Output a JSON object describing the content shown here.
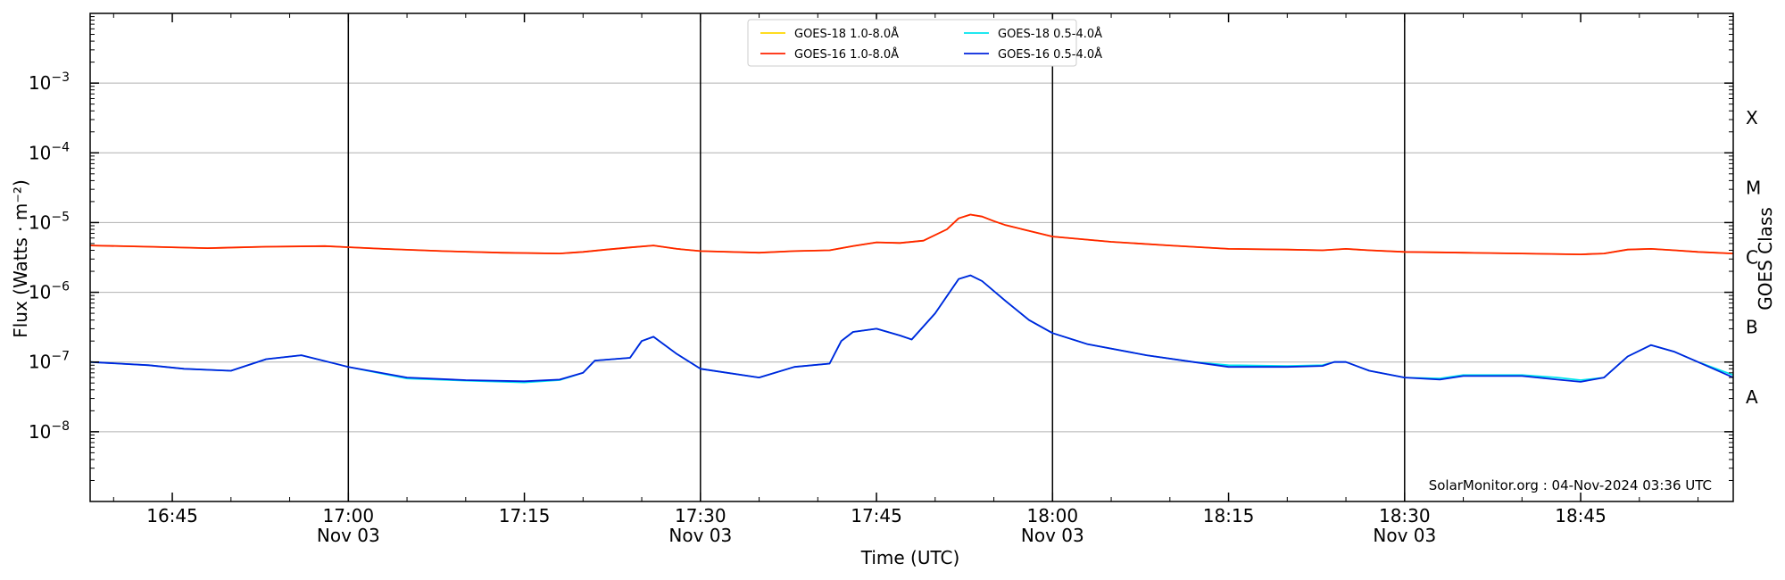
{
  "chart_data": {
    "type": "line",
    "title": "",
    "xlabel": "Time (UTC)",
    "ylabel": "Flux (Watts · m⁻²)",
    "ylabel_right": "GOES Class",
    "y_scale": "log",
    "ylim": [
      1e-09,
      0.01
    ],
    "xlim": [
      "16:38",
      "18:58"
    ],
    "y_ticks": [
      {
        "value": 1e-08,
        "base": "10",
        "exp": "−8"
      },
      {
        "value": 1e-07,
        "base": "10",
        "exp": "−7"
      },
      {
        "value": 1e-06,
        "base": "10",
        "exp": "−6"
      },
      {
        "value": 1e-05,
        "base": "10",
        "exp": "−5"
      },
      {
        "value": 0.0001,
        "base": "10",
        "exp": "−4"
      },
      {
        "value": 0.001,
        "base": "10",
        "exp": "−3"
      }
    ],
    "x_ticks": [
      {
        "time": "16:45",
        "label": "16:45",
        "sublabel": ""
      },
      {
        "time": "17:00",
        "label": "17:00",
        "sublabel": "Nov 03"
      },
      {
        "time": "17:15",
        "label": "17:15",
        "sublabel": ""
      },
      {
        "time": "17:30",
        "label": "17:30",
        "sublabel": "Nov 03"
      },
      {
        "time": "17:45",
        "label": "17:45",
        "sublabel": ""
      },
      {
        "time": "18:00",
        "label": "18:00",
        "sublabel": "Nov 03"
      },
      {
        "time": "18:15",
        "label": "18:15",
        "sublabel": ""
      },
      {
        "time": "18:30",
        "label": "18:30",
        "sublabel": "Nov 03"
      },
      {
        "time": "18:45",
        "label": "18:45",
        "sublabel": ""
      }
    ],
    "vertical_lines": [
      "17:00",
      "17:30",
      "18:00",
      "18:30"
    ],
    "goes_classes": [
      {
        "label": "A",
        "flux": 3.16e-08
      },
      {
        "label": "B",
        "flux": 3.16e-07
      },
      {
        "label": "C",
        "flux": 3.16e-06
      },
      {
        "label": "M",
        "flux": 3.16e-05
      },
      {
        "label": "X",
        "flux": 0.000316
      }
    ],
    "grid": "horizontal",
    "legend_position": "top-center",
    "series": [
      {
        "name": "GOES-18 1.0-8.0Å",
        "color": "#ffd700",
        "x": [
          "16:38",
          "16:43",
          "16:48",
          "16:53",
          "16:58",
          "17:03",
          "17:08",
          "17:13",
          "17:18",
          "17:20",
          "17:22",
          "17:24",
          "17:26",
          "17:28",
          "17:30",
          "17:35",
          "17:38",
          "17:41",
          "17:43",
          "17:45",
          "17:47",
          "17:49",
          "17:51",
          "17:52",
          "17:53",
          "17:54",
          "17:55",
          "17:56",
          "17:58",
          "18:00",
          "18:05",
          "18:10",
          "18:15",
          "18:20",
          "18:23",
          "18:25",
          "18:27",
          "18:30",
          "18:35",
          "18:40",
          "18:45",
          "18:47",
          "18:49",
          "18:51",
          "18:53",
          "18:55",
          "18:58"
        ],
        "y": [
          4.7e-06,
          4.5e-06,
          4.3e-06,
          4.5e-06,
          4.6e-06,
          4.2e-06,
          3.9e-06,
          3.7e-06,
          3.6e-06,
          3.8e-06,
          4.1e-06,
          4.4e-06,
          4.7e-06,
          4.2e-06,
          3.9e-06,
          3.7e-06,
          3.9e-06,
          4e-06,
          4.6e-06,
          5.2e-06,
          5.1e-06,
          5.5e-06,
          8e-06,
          1.15e-05,
          1.3e-05,
          1.22e-05,
          1.05e-05,
          9.2e-06,
          7.6e-06,
          6.3e-06,
          5.3e-06,
          4.7e-06,
          4.2e-06,
          4.1e-06,
          4e-06,
          4.2e-06,
          4e-06,
          3.8e-06,
          3.7e-06,
          3.6e-06,
          3.5e-06,
          3.6e-06,
          4.1e-06,
          4.2e-06,
          4e-06,
          3.8e-06,
          3.6e-06
        ]
      },
      {
        "name": "GOES-16 1.0-8.0Å",
        "color": "#ff2200",
        "x": [
          "16:38",
          "16:43",
          "16:48",
          "16:53",
          "16:58",
          "17:03",
          "17:08",
          "17:13",
          "17:18",
          "17:20",
          "17:22",
          "17:24",
          "17:26",
          "17:28",
          "17:30",
          "17:35",
          "17:38",
          "17:41",
          "17:43",
          "17:45",
          "17:47",
          "17:49",
          "17:51",
          "17:52",
          "17:53",
          "17:54",
          "17:55",
          "17:56",
          "17:58",
          "18:00",
          "18:05",
          "18:10",
          "18:15",
          "18:20",
          "18:23",
          "18:25",
          "18:27",
          "18:30",
          "18:35",
          "18:40",
          "18:45",
          "18:47",
          "18:49",
          "18:51",
          "18:53",
          "18:55",
          "18:58"
        ],
        "y": [
          4.7e-06,
          4.5e-06,
          4.3e-06,
          4.5e-06,
          4.6e-06,
          4.2e-06,
          3.9e-06,
          3.7e-06,
          3.6e-06,
          3.8e-06,
          4.1e-06,
          4.4e-06,
          4.7e-06,
          4.2e-06,
          3.9e-06,
          3.7e-06,
          3.9e-06,
          4e-06,
          4.6e-06,
          5.2e-06,
          5.1e-06,
          5.5e-06,
          8e-06,
          1.15e-05,
          1.3e-05,
          1.22e-05,
          1.05e-05,
          9.2e-06,
          7.6e-06,
          6.3e-06,
          5.3e-06,
          4.7e-06,
          4.2e-06,
          4.1e-06,
          4e-06,
          4.2e-06,
          4e-06,
          3.8e-06,
          3.7e-06,
          3.6e-06,
          3.5e-06,
          3.6e-06,
          4.1e-06,
          4.2e-06,
          4e-06,
          3.8e-06,
          3.6e-06
        ]
      },
      {
        "name": "GOES-18 0.5-4.0Å",
        "color": "#00e5ee",
        "x": [
          "16:38",
          "16:43",
          "16:46",
          "16:50",
          "16:53",
          "16:56",
          "17:00",
          "17:05",
          "17:10",
          "17:15",
          "17:18",
          "17:20",
          "17:21",
          "17:24",
          "17:25",
          "17:26",
          "17:28",
          "17:30",
          "17:35",
          "17:38",
          "17:41",
          "17:42",
          "17:43",
          "17:45",
          "17:47",
          "17:48",
          "17:50",
          "17:52",
          "17:53",
          "17:54",
          "17:56",
          "17:58",
          "18:00",
          "18:03",
          "18:08",
          "18:12",
          "18:15",
          "18:20",
          "18:23",
          "18:24",
          "18:25",
          "18:27",
          "18:30",
          "18:33",
          "18:35",
          "18:40",
          "18:43",
          "18:45",
          "18:47",
          "18:49",
          "18:51",
          "18:53",
          "18:55",
          "18:58"
        ],
        "y": [
          1e-07,
          9e-08,
          8e-08,
          7.5e-08,
          1.1e-07,
          1.25e-07,
          8.5e-08,
          5.8e-08,
          5.4e-08,
          5.1e-08,
          5.5e-08,
          7e-08,
          1.05e-07,
          1.15e-07,
          2e-07,
          2.3e-07,
          1.3e-07,
          8e-08,
          6e-08,
          8.5e-08,
          9.5e-08,
          2e-07,
          2.7e-07,
          3e-07,
          2.4e-07,
          2.1e-07,
          5e-07,
          1.55e-06,
          1.75e-06,
          1.45e-06,
          7.5e-07,
          4e-07,
          2.6e-07,
          1.8e-07,
          1.25e-07,
          1e-07,
          9e-08,
          8.8e-08,
          9e-08,
          1e-07,
          1e-07,
          7.5e-08,
          6e-08,
          5.8e-08,
          6.5e-08,
          6.5e-08,
          6e-08,
          5.5e-08,
          6e-08,
          1.2e-07,
          1.75e-07,
          1.4e-07,
          1e-07,
          6.5e-08
        ]
      },
      {
        "name": "GOES-16 0.5-4.0Å",
        "color": "#0022dd",
        "x": [
          "16:38",
          "16:43",
          "16:46",
          "16:50",
          "16:53",
          "16:56",
          "17:00",
          "17:05",
          "17:10",
          "17:15",
          "17:18",
          "17:20",
          "17:21",
          "17:24",
          "17:25",
          "17:26",
          "17:28",
          "17:30",
          "17:35",
          "17:38",
          "17:41",
          "17:42",
          "17:43",
          "17:45",
          "17:47",
          "17:48",
          "17:50",
          "17:52",
          "17:53",
          "17:54",
          "17:56",
          "17:58",
          "18:00",
          "18:03",
          "18:08",
          "18:12",
          "18:15",
          "18:20",
          "18:23",
          "18:24",
          "18:25",
          "18:27",
          "18:30",
          "18:33",
          "18:35",
          "18:40",
          "18:43",
          "18:45",
          "18:47",
          "18:49",
          "18:51",
          "18:53",
          "18:55",
          "18:58"
        ],
        "y": [
          1e-07,
          9e-08,
          8e-08,
          7.5e-08,
          1.1e-07,
          1.25e-07,
          8.5e-08,
          6e-08,
          5.5e-08,
          5.3e-08,
          5.6e-08,
          7e-08,
          1.05e-07,
          1.15e-07,
          2e-07,
          2.3e-07,
          1.3e-07,
          8e-08,
          6e-08,
          8.5e-08,
          9.5e-08,
          2e-07,
          2.7e-07,
          3e-07,
          2.4e-07,
          2.1e-07,
          5e-07,
          1.55e-06,
          1.75e-06,
          1.45e-06,
          7.5e-07,
          4e-07,
          2.6e-07,
          1.8e-07,
          1.25e-07,
          1e-07,
          8.5e-08,
          8.5e-08,
          8.8e-08,
          1e-07,
          1e-07,
          7.5e-08,
          6e-08,
          5.6e-08,
          6.3e-08,
          6.3e-08,
          5.6e-08,
          5.2e-08,
          6e-08,
          1.2e-07,
          1.75e-07,
          1.4e-07,
          1e-07,
          6e-08
        ]
      }
    ],
    "legend": [
      {
        "label": "GOES-18 1.0-8.0Å",
        "color": "#ffd700"
      },
      {
        "label": "GOES-16 1.0-8.0Å",
        "color": "#ff2200"
      },
      {
        "label": "GOES-18 0.5-4.0Å",
        "color": "#00e5ee"
      },
      {
        "label": "GOES-16 0.5-4.0Å",
        "color": "#0022dd"
      }
    ],
    "annotation": "SolarMonitor.org : 04-Nov-2024 03:36 UTC"
  }
}
